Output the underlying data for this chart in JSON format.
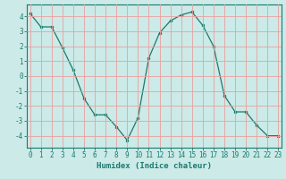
{
  "x": [
    0,
    1,
    2,
    3,
    4,
    5,
    6,
    7,
    8,
    9,
    10,
    11,
    12,
    13,
    14,
    15,
    16,
    17,
    18,
    19,
    20,
    21,
    22,
    23
  ],
  "y": [
    4.2,
    3.3,
    3.3,
    1.9,
    0.4,
    -1.5,
    -2.6,
    -2.6,
    -3.4,
    -4.3,
    -2.8,
    1.2,
    2.9,
    3.7,
    4.1,
    4.3,
    3.4,
    2.0,
    -1.3,
    -2.4,
    -2.4,
    -3.3,
    -4.0,
    -4.0
  ],
  "line_color": "#1a7a6e",
  "marker": "o",
  "marker_size": 2.0,
  "bg_color": "#cceae7",
  "grid_color": "#e8a0a0",
  "xlabel": "Humidex (Indice chaleur)",
  "ylim": [
    -4.8,
    4.8
  ],
  "xlim": [
    -0.3,
    23.3
  ],
  "yticks": [
    -4,
    -3,
    -2,
    -1,
    0,
    1,
    2,
    3,
    4
  ],
  "xticks": [
    0,
    1,
    2,
    3,
    4,
    5,
    6,
    7,
    8,
    9,
    10,
    11,
    12,
    13,
    14,
    15,
    16,
    17,
    18,
    19,
    20,
    21,
    22,
    23
  ],
  "axis_color": "#1a7a6e",
  "label_fontsize": 6.5,
  "tick_fontsize": 5.5,
  "linewidth": 0.9
}
